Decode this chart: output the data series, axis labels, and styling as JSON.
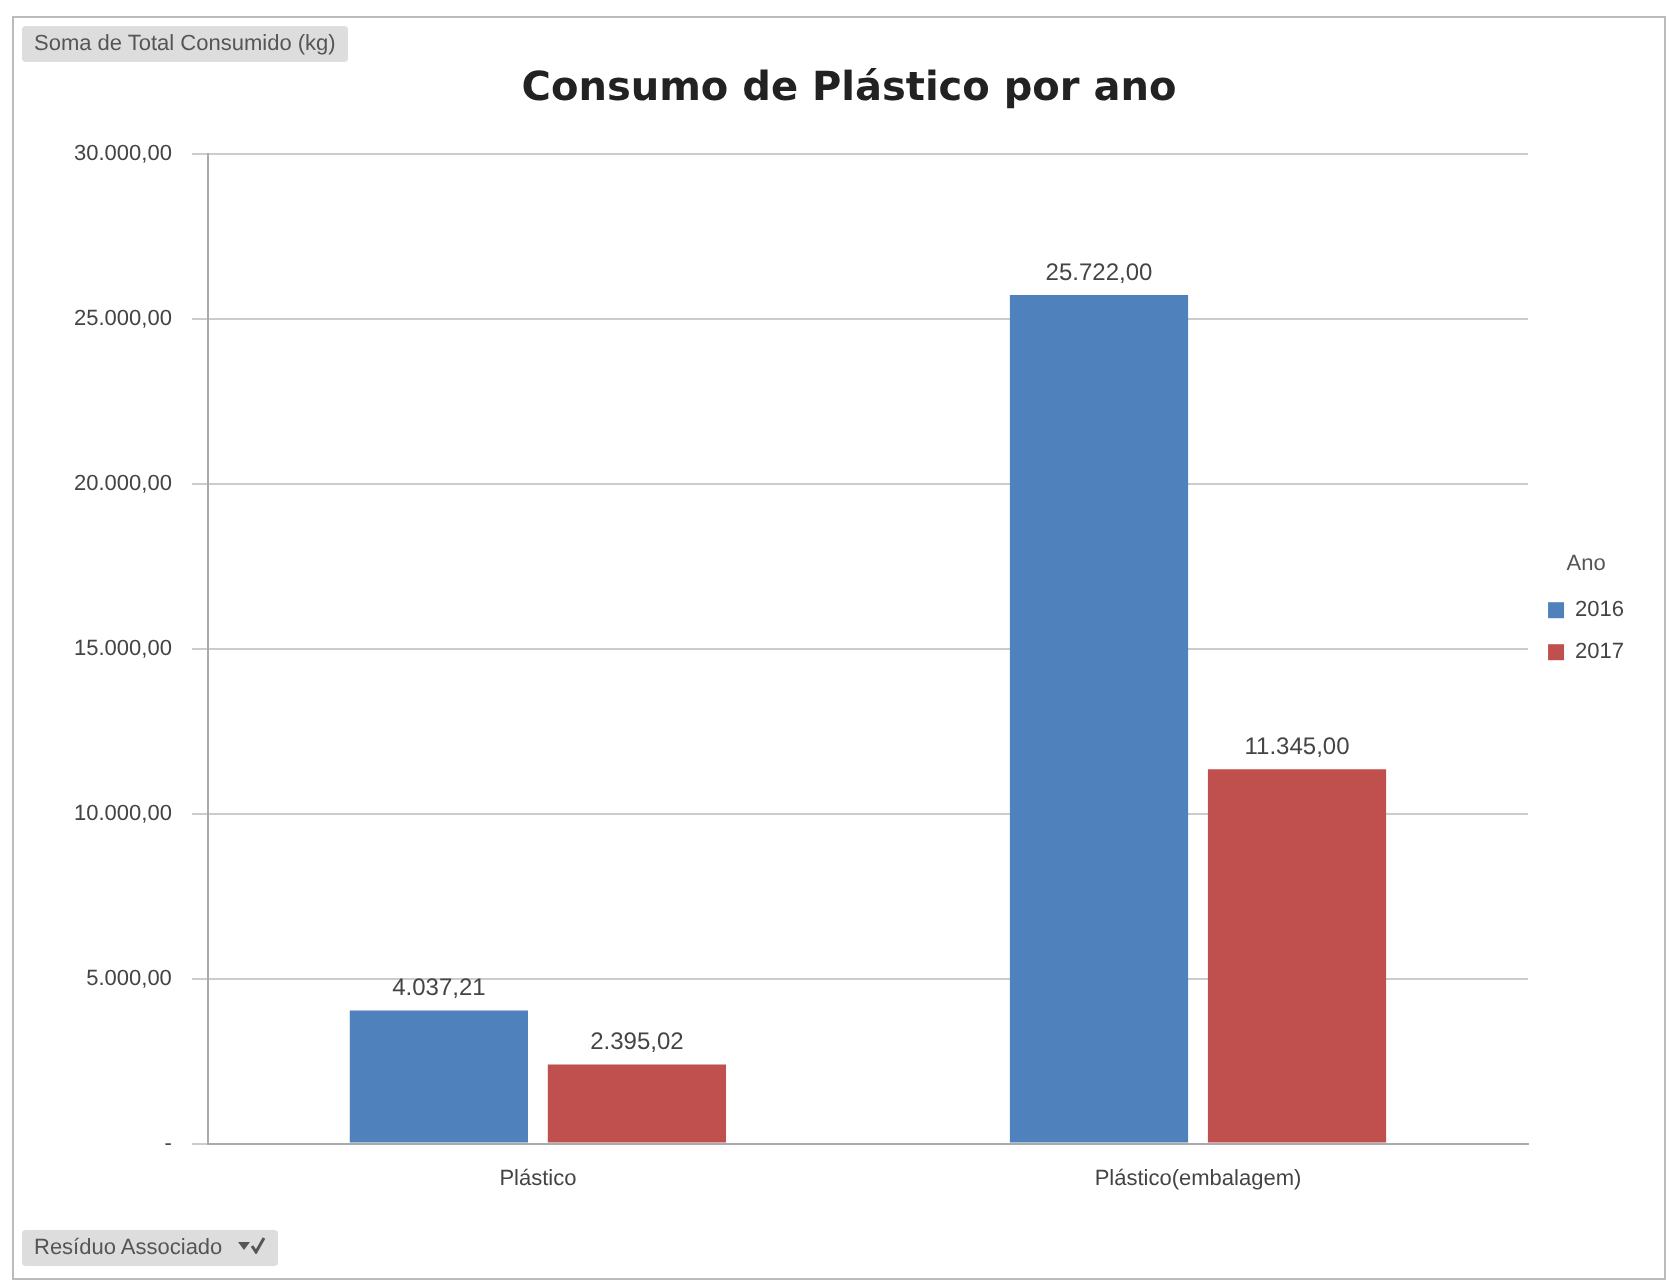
{
  "chart_data": {
    "type": "bar",
    "title": "Consumo de Plástico por ano",
    "ylabel": "Soma de Total Consumido (kg)",
    "xlabel": "Resíduo Associado",
    "legend_title": "Ano",
    "categories": [
      "Plástico",
      "Plástico(embalagem)"
    ],
    "series": [
      {
        "name": "2016",
        "color": "#4f81bd",
        "values": [
          4037.21,
          25722.0
        ],
        "value_labels": [
          "4.037,21",
          "25.722,00"
        ]
      },
      {
        "name": "2017",
        "color": "#c0504d",
        "values": [
          2395.02,
          11345.0
        ],
        "value_labels": [
          "2.395,02",
          "11.345,00"
        ]
      }
    ],
    "ylim": [
      0,
      30000
    ],
    "yticks": [
      {
        "value": 0,
        "label": "-"
      },
      {
        "value": 5000,
        "label": "5.000,00"
      },
      {
        "value": 10000,
        "label": "10.000,00"
      },
      {
        "value": 15000,
        "label": "15.000,00"
      },
      {
        "value": 20000,
        "label": "20.000,00"
      },
      {
        "value": 25000,
        "label": "25.000,00"
      },
      {
        "value": 30000,
        "label": "30.000,00"
      }
    ],
    "grid": "y",
    "legend": "right"
  }
}
